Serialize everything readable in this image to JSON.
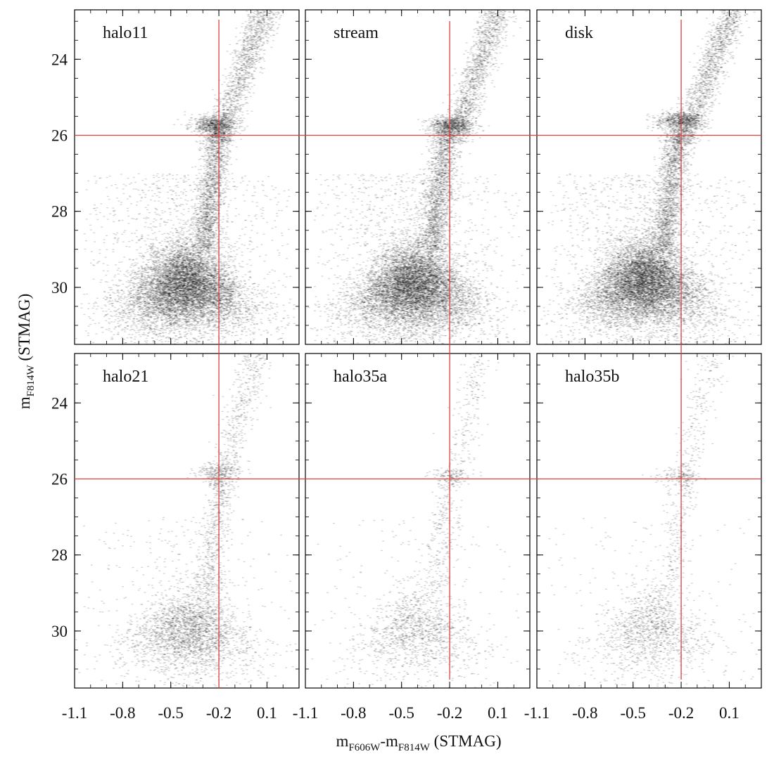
{
  "chart_data": {
    "type": "scatter",
    "layout": "2x3 panel grid of color-magnitude diagrams (Hess diagrams), shared axes",
    "rendering": "grayscale point density",
    "xlabel": {
      "base1": "m",
      "sub1": "F606W",
      "sep": "-",
      "base2": "m",
      "sub2": "F814W",
      "rest": " (STMAG)"
    },
    "ylabel": {
      "base": "m",
      "sub": "F814W",
      "rest": " (STMAG)"
    },
    "xlim": [
      -1.1,
      0.3
    ],
    "ylim": [
      31.5,
      22.7
    ],
    "y_inverted": true,
    "xticks": [
      -1.1,
      -0.8,
      -0.5,
      -0.2,
      0.1
    ],
    "xtick_labels": [
      "-1.1",
      "-0.8",
      "-0.5",
      "-0.2",
      "0.1"
    ],
    "yticks": [
      24,
      26,
      28,
      30
    ],
    "ytick_labels": [
      "24",
      "26",
      "28",
      "30"
    ],
    "reference_lines": {
      "color": "#d94040",
      "vertical_x": -0.2,
      "horizontal_y": 26
    },
    "panels": [
      {
        "label": "halo11",
        "row": 0,
        "col": 0,
        "density": "high",
        "red_clump": {
          "x": -0.24,
          "y": 25.7
        },
        "main_sequence_turnoff": {
          "x": -0.45,
          "y": 29.5
        },
        "rgb_color_at_24": -0.05
      },
      {
        "label": "stream",
        "row": 0,
        "col": 1,
        "density": "high",
        "red_clump": {
          "x": -0.2,
          "y": 25.7
        },
        "main_sequence_turnoff": {
          "x": -0.47,
          "y": 29.5
        },
        "rgb_color_at_24": -0.03
      },
      {
        "label": "disk",
        "row": 0,
        "col": 2,
        "density": "high",
        "red_clump": {
          "x": -0.22,
          "y": 25.6
        },
        "main_sequence_turnoff": {
          "x": -0.47,
          "y": 29.4
        },
        "rgb_color_at_24": -0.02
      },
      {
        "label": "halo21",
        "row": 1,
        "col": 0,
        "density": "medium",
        "red_clump": {
          "x": -0.22,
          "y": 25.8
        },
        "main_sequence_turnoff": {
          "x": -0.43,
          "y": 29.5
        },
        "rgb_color_at_24": -0.08
      },
      {
        "label": "halo35a",
        "row": 1,
        "col": 1,
        "density": "low",
        "red_clump": {
          "x": -0.2,
          "y": 25.9
        },
        "main_sequence_turnoff": {
          "x": -0.45,
          "y": 29.5
        },
        "rgb_color_at_24": -0.1
      },
      {
        "label": "halo35b",
        "row": 1,
        "col": 2,
        "density": "low",
        "red_clump": {
          "x": -0.22,
          "y": 25.9
        },
        "main_sequence_turnoff": {
          "x": -0.43,
          "y": 29.5
        },
        "rgb_color_at_24": -0.1
      }
    ]
  }
}
